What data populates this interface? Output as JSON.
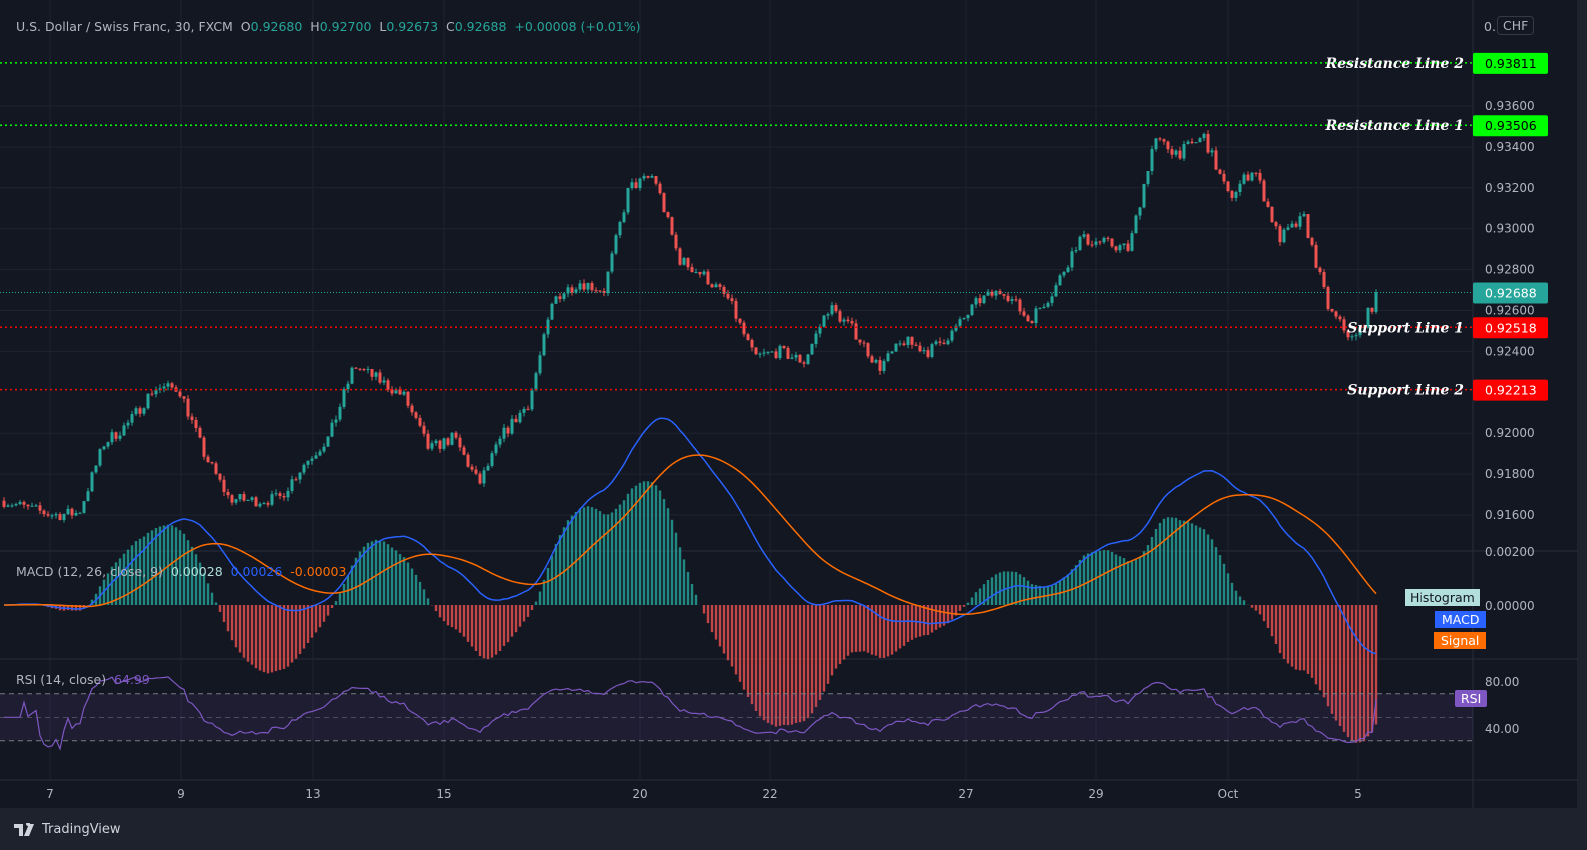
{
  "header": {
    "symbol": "U.S. Dollar / Swiss Franc, 30, FXCM",
    "open_label": "O",
    "open": "0.92680",
    "high_label": "H",
    "high": "0.92700",
    "low_label": "L",
    "low": "0.92673",
    "close_label": "C",
    "close": "0.92688",
    "change": "+0.00008 (+0.01%)"
  },
  "currency_badge": "CHF",
  "currency_partial": "0.",
  "price_axis": {
    "ticks": [
      "0.93600",
      "0.93400",
      "0.93200",
      "0.93000",
      "0.92800",
      "0.92600",
      "0.92400",
      "0.92000",
      "0.91800",
      "0.91600"
    ],
    "tick_values": [
      0.936,
      0.934,
      0.932,
      0.93,
      0.928,
      0.926,
      0.924,
      0.92,
      0.918,
      0.916
    ],
    "last_price": "0.92688",
    "last_price_value": 0.92688
  },
  "levels": [
    {
      "label": "Resistance Line 2",
      "price": "0.93811",
      "value": 0.93811,
      "color": "#00ff00"
    },
    {
      "label": "Resistance Line 1",
      "price": "0.93506",
      "value": 0.93506,
      "color": "#00ff00"
    },
    {
      "label": "Support Line 1",
      "price": "0.92518",
      "value": 0.92518,
      "color": "#ff0000"
    },
    {
      "label": "Support Line 2",
      "price": "0.92213",
      "value": 0.92213,
      "color": "#ff0000"
    }
  ],
  "macd": {
    "title": "MACD (12, 26, close, 9)",
    "histogram": "0.00028",
    "macd": "0.00026",
    "signal": "-0.00003",
    "axis_top": "0.00200",
    "axis_zero": "0.00000",
    "tags": {
      "histogram": "Histogram",
      "macd": "MACD",
      "signal": "Signal"
    },
    "colors": {
      "macd": "#2962ff",
      "signal": "#ff6d00",
      "hist_up": "#26a69a",
      "hist_down": "#ef5350"
    }
  },
  "rsi": {
    "title": "RSI (14, close)",
    "value": "64.99",
    "ticks": [
      "80.00",
      "40.00"
    ],
    "tag": "RSI",
    "color": "#7e57c2"
  },
  "time_axis": [
    "7",
    "9",
    "13",
    "15",
    "20",
    "22",
    "27",
    "29",
    "Oct",
    "5"
  ],
  "footer": {
    "brand": "TradingView"
  },
  "chart_data": {
    "type": "candlestick",
    "series_name": "USDCHF 30",
    "closes_sampled": [
      0.9167,
      0.9163,
      0.916,
      0.9161,
      0.9195,
      0.9205,
      0.9222,
      0.9222,
      0.919,
      0.9168,
      0.9167,
      0.9168,
      0.9185,
      0.9198,
      0.9233,
      0.9226,
      0.9218,
      0.9192,
      0.9198,
      0.9175,
      0.92,
      0.9215,
      0.9266,
      0.9274,
      0.927,
      0.932,
      0.9326,
      0.9285,
      0.9277,
      0.9265,
      0.9237,
      0.924,
      0.9235,
      0.9262,
      0.925,
      0.9232,
      0.9245,
      0.924,
      0.925,
      0.9265,
      0.927,
      0.9255,
      0.927,
      0.9295,
      0.9293,
      0.929,
      0.9343,
      0.9337,
      0.9345,
      0.9315,
      0.933,
      0.9295,
      0.9305,
      0.926,
      0.9245,
      0.92688
    ],
    "colors": {
      "up": "#26a69a",
      "down": "#ef5350"
    }
  }
}
